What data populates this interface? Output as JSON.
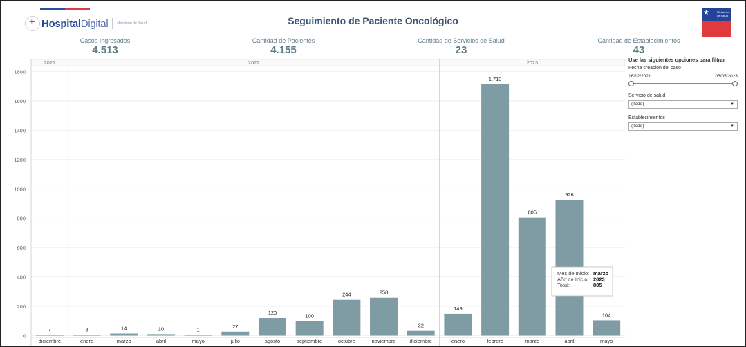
{
  "header": {
    "logo_text_1": "Hospital",
    "logo_text_2": "Digital",
    "logo_sub": "Ministerio de Salud",
    "title": "Seguimiento de Paciente Oncológico",
    "seal_text": "Ministerio de Salud"
  },
  "kpis": [
    {
      "label": "Casos Ingresados",
      "value": "4.513"
    },
    {
      "label": "Cantidad de Pacientes",
      "value": "4.155"
    },
    {
      "label": "Cantidad de Servicios de Salud",
      "value": "23"
    },
    {
      "label": "Cantidad de Establecimientos",
      "value": "43"
    }
  ],
  "filters": {
    "heading": "Use las siguientes opciones para filtrar",
    "date_caption": "Fecha creación del caso",
    "date_from": "16/12/2021",
    "date_to": "05/05/2023",
    "service_caption": "Servicio de salud",
    "service_value": "(Todo)",
    "est_caption": "Establecimientos",
    "est_value": "(Todo)"
  },
  "tooltip": {
    "l1": "Mes de Inicio:",
    "v1": "marzo",
    "l2": "Año de Inicio:",
    "v2": "2023",
    "l3": "Total:",
    "v3": "805"
  },
  "chart_data": {
    "type": "bar",
    "years": [
      {
        "label": "2021",
        "count": 1
      },
      {
        "label": "2022",
        "count": 10
      },
      {
        "label": "2023",
        "count": 5
      }
    ],
    "categories": [
      "diciembre",
      "enero",
      "marzo",
      "abril",
      "mayo",
      "julio",
      "agosto",
      "septiembre",
      "octubre",
      "noviembre",
      "diciembre",
      "enero",
      "febrero",
      "marzo",
      "abril",
      "mayo"
    ],
    "values": [
      7,
      3,
      14,
      10,
      1,
      27,
      120,
      100,
      244,
      258,
      32,
      149,
      1713,
      805,
      926,
      104
    ],
    "labels": [
      "7",
      "3",
      "14",
      "10",
      "1",
      "27",
      "120",
      "100",
      "244",
      "258",
      "32",
      "149",
      "1.713",
      "805",
      "926",
      "104"
    ],
    "yticks": [
      0,
      200,
      400,
      600,
      800,
      1000,
      1200,
      1400,
      1600,
      1800
    ],
    "ylim": [
      0,
      1880
    ],
    "grid": true,
    "bar_color": "#7f9ba3"
  }
}
